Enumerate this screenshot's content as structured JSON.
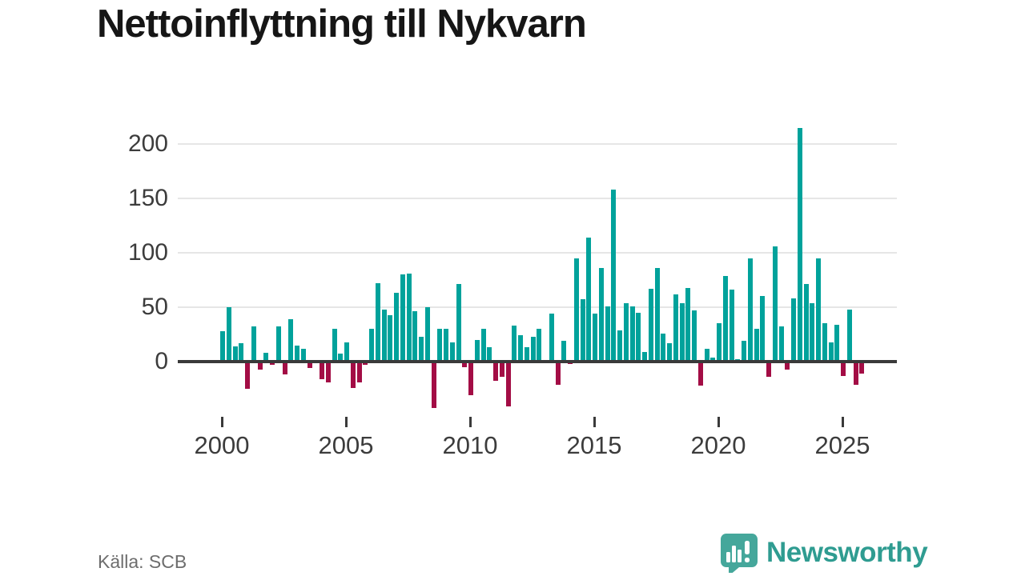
{
  "title": "Nettoinflyttning till Nykvarn",
  "source": "Källa: SCB",
  "logo": {
    "text": "Newsworthy",
    "icon": "newsworthy-chart-bubble-icon"
  },
  "colors": {
    "positive": "#00a29b",
    "negative": "#a30d45",
    "axis": "#3a3a3a",
    "grid": "#e6e6e6",
    "title": "#161616",
    "tick_label": "#3c3c3c",
    "source_text": "#6d6d6d",
    "logo_bubble": "#45a79b",
    "logo_text": "#2f9c91"
  },
  "chart_data": {
    "type": "bar",
    "title": "Nettoinflyttning till Nykvarn",
    "xlabel": "",
    "ylabel": "",
    "x_unit": "quarter",
    "x_start_year": 2000,
    "yticks": [
      0,
      50,
      100,
      150,
      200
    ],
    "xticks": [
      "2000",
      "2005",
      "2010",
      "2015",
      "2020",
      "2025"
    ],
    "ylim": [
      -50,
      220
    ],
    "grid": "horizontal",
    "legend": "none",
    "source": "Källa: SCB",
    "values": [
      28,
      50,
      14,
      17,
      -25,
      32,
      -7,
      8,
      -3,
      32,
      -12,
      39,
      15,
      12,
      -6,
      0,
      -16,
      -19,
      30,
      7,
      18,
      -24,
      -19,
      -3,
      30,
      72,
      48,
      43,
      63,
      80,
      81,
      46,
      23,
      50,
      -43,
      30,
      30,
      18,
      71,
      -5,
      -31,
      20,
      30,
      13,
      -18,
      -14,
      -41,
      33,
      24,
      13,
      23,
      30,
      0,
      44,
      -21,
      19,
      -2,
      95,
      57,
      114,
      44,
      86,
      51,
      158,
      29,
      54,
      51,
      45,
      9,
      67,
      86,
      26,
      17,
      62,
      54,
      68,
      47,
      -22,
      12,
      4,
      35,
      79,
      66,
      2,
      19,
      95,
      30,
      60,
      -14,
      106,
      32,
      -7,
      58,
      215,
      71,
      54,
      95,
      35,
      18,
      34,
      -13,
      48,
      -21,
      -11
    ]
  }
}
